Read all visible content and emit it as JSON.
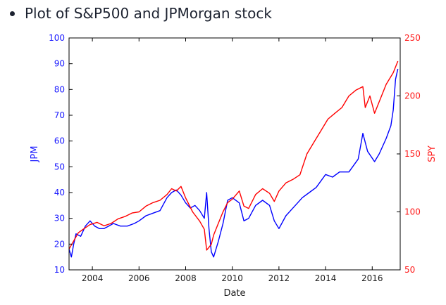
{
  "slide": {
    "title": "Plot of S&P500 and JPMorgan stock"
  },
  "colors": {
    "jpm": "#0000ff",
    "spy": "#ff0000",
    "text": "#1c2230"
  },
  "chart_data": {
    "type": "line",
    "title": "",
    "xlabel": "Date",
    "ylabel": "JPM",
    "y2label": "SPY",
    "xlim": [
      2003.0,
      2017.2
    ],
    "ylim": [
      10,
      100
    ],
    "y2lim": [
      50,
      250
    ],
    "x_ticks": [
      "2004",
      "2006",
      "2008",
      "2010",
      "2012",
      "2014",
      "2016"
    ],
    "y_ticks": [
      "10",
      "20",
      "30",
      "40",
      "50",
      "60",
      "70",
      "80",
      "90",
      "100"
    ],
    "y2_ticks": [
      "50",
      "100",
      "150",
      "200",
      "250"
    ],
    "grid": false,
    "series": [
      {
        "name": "JPM",
        "axis": "left",
        "x": [
          2003.0,
          2003.1,
          2003.2,
          2003.3,
          2003.5,
          2003.7,
          2003.9,
          2004.1,
          2004.3,
          2004.5,
          2004.7,
          2004.9,
          2005.2,
          2005.5,
          2005.8,
          2006.0,
          2006.3,
          2006.6,
          2006.9,
          2007.2,
          2007.4,
          2007.6,
          2007.8,
          2008.0,
          2008.2,
          2008.4,
          2008.6,
          2008.8,
          2008.9,
          2009.0,
          2009.1,
          2009.2,
          2009.4,
          2009.6,
          2009.8,
          2010.0,
          2010.3,
          2010.5,
          2010.7,
          2011.0,
          2011.3,
          2011.6,
          2011.8,
          2012.0,
          2012.3,
          2012.5,
          2012.8,
          2013.0,
          2013.3,
          2013.6,
          2014.0,
          2014.3,
          2014.6,
          2015.0,
          2015.4,
          2015.6,
          2015.8,
          2016.1,
          2016.3,
          2016.6,
          2016.8,
          2016.9,
          2017.0,
          2017.1
        ],
        "y": [
          18,
          15,
          20,
          24,
          23,
          27,
          29,
          27,
          26,
          26,
          27,
          28,
          27,
          27,
          28,
          29,
          31,
          32,
          33,
          38,
          40,
          41,
          39,
          36,
          34,
          35,
          33,
          30,
          40,
          26,
          17,
          15,
          21,
          28,
          37,
          38,
          36,
          29,
          30,
          35,
          37,
          35,
          29,
          26,
          31,
          33,
          36,
          38,
          40,
          42,
          47,
          46,
          48,
          48,
          53,
          63,
          56,
          52,
          55,
          61,
          66,
          72,
          84,
          88
        ]
      },
      {
        "name": "SPY",
        "axis": "right",
        "x": [
          2003.0,
          2003.2,
          2003.4,
          2003.6,
          2003.9,
          2004.2,
          2004.5,
          2004.8,
          2005.1,
          2005.4,
          2005.7,
          2006.0,
          2006.3,
          2006.6,
          2006.9,
          2007.2,
          2007.4,
          2007.6,
          2007.8,
          2008.0,
          2008.3,
          2008.6,
          2008.8,
          2008.9,
          2009.1,
          2009.2,
          2009.4,
          2009.6,
          2009.8,
          2010.0,
          2010.3,
          2010.5,
          2010.7,
          2011.0,
          2011.3,
          2011.6,
          2011.8,
          2012.0,
          2012.3,
          2012.6,
          2012.9,
          2013.2,
          2013.5,
          2013.8,
          2014.1,
          2014.4,
          2014.7,
          2015.0,
          2015.3,
          2015.6,
          2015.7,
          2015.9,
          2016.1,
          2016.3,
          2016.6,
          2016.9,
          2017.1
        ],
        "y": [
          68,
          75,
          82,
          85,
          89,
          91,
          88,
          90,
          94,
          96,
          99,
          100,
          105,
          108,
          110,
          115,
          120,
          118,
          122,
          112,
          100,
          92,
          85,
          67,
          72,
          80,
          90,
          100,
          108,
          111,
          118,
          105,
          103,
          115,
          120,
          116,
          109,
          118,
          125,
          128,
          132,
          150,
          160,
          170,
          180,
          185,
          190,
          200,
          205,
          208,
          190,
          200,
          185,
          195,
          210,
          220,
          230
        ]
      }
    ]
  }
}
